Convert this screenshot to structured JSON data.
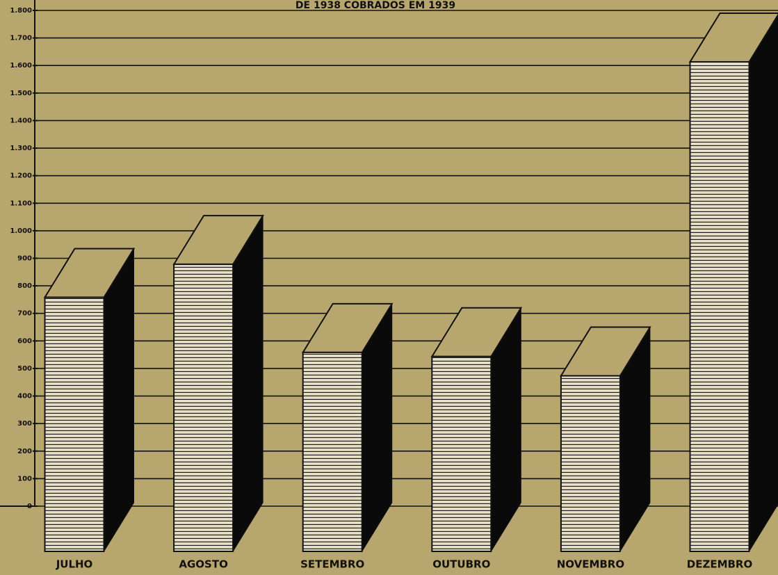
{
  "chart_data": {
    "type": "bar3d",
    "title": "DE 1938 COBRADOS EM 1939",
    "categories": [
      "JULHO",
      "AGOSTO",
      "SETEMBRO",
      "OUTUBRO",
      "NOVEMBRO",
      "DEZEMBRO"
    ],
    "values": [
      935,
      1055,
      735,
      720,
      650,
      1790
    ],
    "color": "#e6dfc6",
    "side_color": "#0a0a0a",
    "ylim": [
      0,
      1800
    ],
    "yticks": [
      0,
      100,
      200,
      300,
      400,
      500,
      600,
      700,
      800,
      900,
      {
        "value": 1000,
        "label": "1.000"
      },
      {
        "value": 1100,
        "label": "1.100"
      },
      {
        "value": 1200,
        "label": "1.200"
      },
      {
        "value": 1300,
        "label": "1.300"
      },
      {
        "value": 1400,
        "label": "1.400"
      },
      {
        "value": 1500,
        "label": "1.500"
      },
      {
        "value": 1600,
        "label": "1.600"
      },
      {
        "value": 1700,
        "label": "1.700"
      },
      {
        "value": 1800,
        "label": "1.800"
      }
    ],
    "grid": true
  }
}
